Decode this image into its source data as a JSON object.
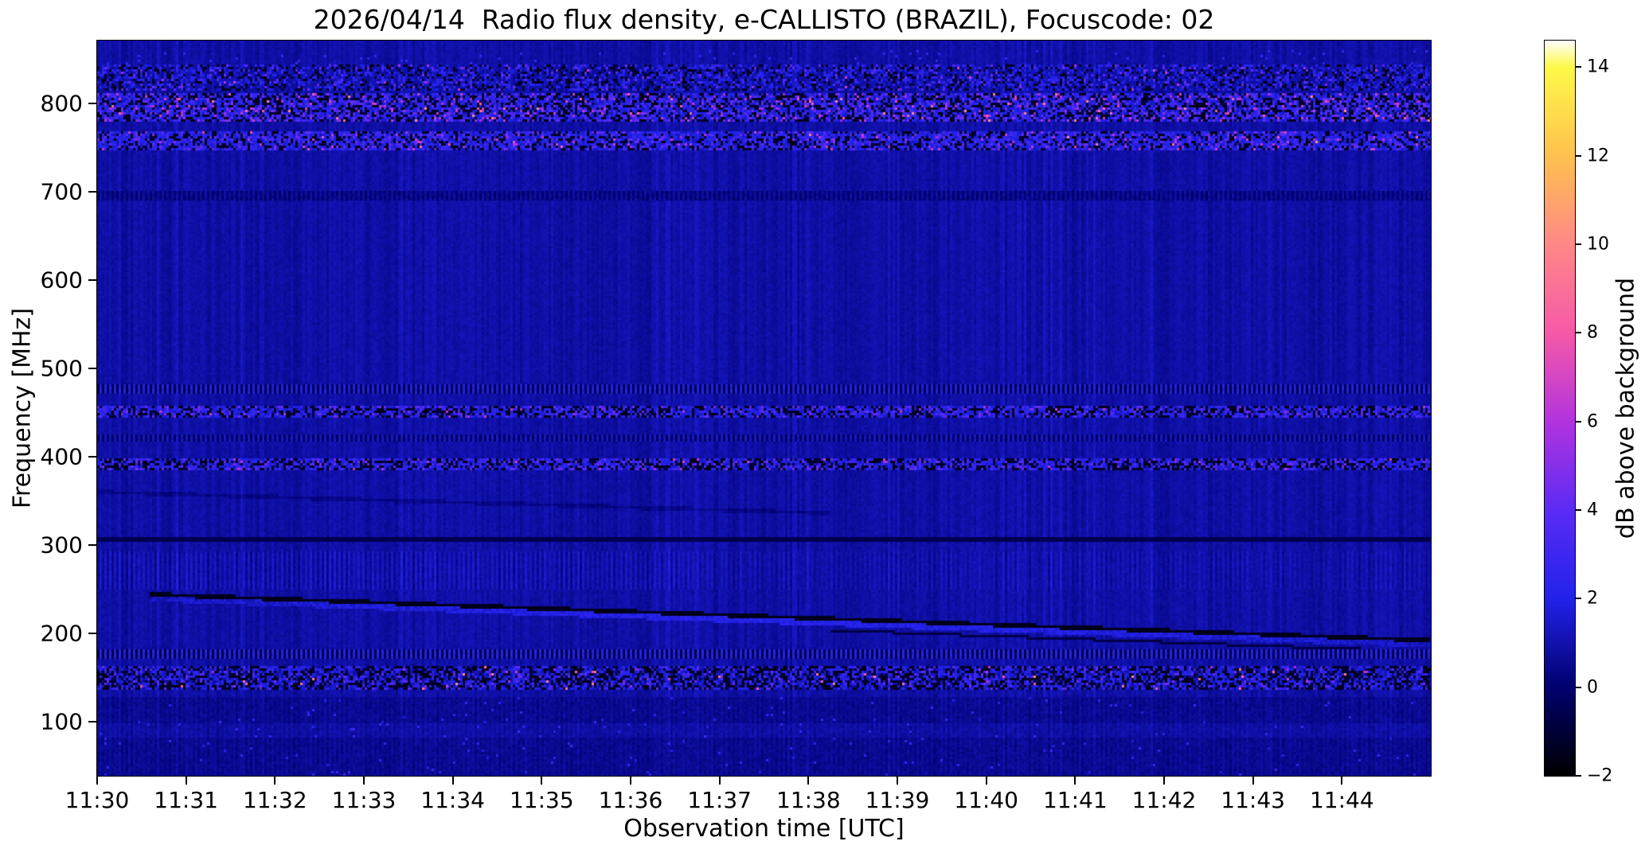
{
  "figure": {
    "title": "2026/04/14  Radio flux density, e-CALLISTO (BRAZIL), Focuscode: 02",
    "xlabel": "Observation time [UTC]",
    "ylabel": "Frequency [MHz]",
    "background_color": "#ffffff"
  },
  "chart_data": {
    "type": "heatmap",
    "subtype": "radio-spectrogram",
    "title": "2026/04/14  Radio flux density, e-CALLISTO (BRAZIL), Focuscode: 02",
    "station": "e-CALLISTO (BRAZIL)",
    "date": "2026/04/14",
    "focuscode": "02",
    "xlabel": "Observation time [UTC]",
    "ylabel": "Frequency [MHz]",
    "x_ticks": [
      "11:30",
      "11:31",
      "11:32",
      "11:33",
      "11:34",
      "11:35",
      "11:36",
      "11:37",
      "11:38",
      "11:39",
      "11:40",
      "11:41",
      "11:42",
      "11:43",
      "11:44"
    ],
    "x_range_utc": [
      "11:30:00",
      "11:45:00"
    ],
    "y_ticks_mhz": [
      800,
      700,
      600,
      500,
      400,
      300,
      200,
      100
    ],
    "y_range_mhz": [
      38.6,
      871.2
    ],
    "grid": false,
    "legend": "none",
    "colorbar": {
      "label": "dB above background",
      "position": "right",
      "ticks": [
        "14",
        "12",
        "10",
        "8",
        "6",
        "4",
        "2",
        "0",
        "−2"
      ],
      "tick_values": [
        14,
        12,
        10,
        8,
        6,
        4,
        2,
        0,
        -2
      ],
      "range_db": [
        -2,
        14.6
      ],
      "colormap": [
        [
          -2,
          "#000000"
        ],
        [
          0,
          "#00006e"
        ],
        [
          2,
          "#2222ea"
        ],
        [
          4,
          "#5b2bf5"
        ],
        [
          6,
          "#b233de"
        ],
        [
          8,
          "#f659a8"
        ],
        [
          10,
          "#ff8887"
        ],
        [
          12,
          "#ffc14e"
        ],
        [
          14,
          "#fdf948"
        ],
        [
          14.6,
          "#ffffff"
        ]
      ]
    },
    "background_level_db": 0.7,
    "features": [
      {
        "kind": "dashes",
        "fmin": 845,
        "fmax": 860,
        "prob": 0.02,
        "level": 2.2,
        "label": "sporadic bright-blue dashes near 850 MHz"
      },
      {
        "kind": "speckle",
        "fmin": 814,
        "fmax": 844,
        "p": [
          0.2,
          0.3,
          0.05,
          0.004,
          0.0
        ],
        "label": "weak noisy strip 814-844 MHz"
      },
      {
        "kind": "speckle",
        "fmin": 780,
        "fmax": 812,
        "p": [
          0.32,
          0.46,
          0.16,
          0.045,
          0.012
        ],
        "label": "strong RFI band 780-812 MHz, black/blue speckle with pink bursts"
      },
      {
        "kind": "speckle",
        "fmin": 748,
        "fmax": 769,
        "p": [
          0.25,
          0.58,
          0.14,
          0.025,
          0.003
        ],
        "label": "RFI band 748-769 MHz"
      },
      {
        "kind": "dots",
        "fmin": 690,
        "fmax": 700,
        "dark": -0.2,
        "bright": 0.5,
        "label": "very faint band ~695 MHz"
      },
      {
        "kind": "dots",
        "fmin": 472,
        "fmax": 483,
        "dark": -0.8,
        "bright": 1.6,
        "label": "fine dotted interference ~478 MHz"
      },
      {
        "kind": "speckle",
        "fmin": 444,
        "fmax": 458,
        "p": [
          0.35,
          0.5,
          0.13,
          0.01,
          0.0
        ],
        "label": "RFI band ~450 MHz"
      },
      {
        "kind": "dots",
        "fmin": 416,
        "fmax": 426,
        "dark": -0.5,
        "bright": 1.1,
        "label": "weak dotted band ~420 MHz"
      },
      {
        "kind": "speckle",
        "fmin": 384,
        "fmax": 398,
        "p": [
          0.36,
          0.5,
          0.13,
          0.008,
          0.0
        ],
        "label": "RFI band ~390 MHz"
      },
      {
        "kind": "drift",
        "f_start": 360,
        "f_end": 336,
        "t_start": 0.0,
        "t_end": 0.55,
        "dark": -0.5,
        "blend": true,
        "label": "faint drifting dark lane 360 to 336 MHz (first half)"
      },
      {
        "kind": "line",
        "f": 306,
        "halfwidth": 2,
        "level": -0.75,
        "label": "narrow dark horizontal line ~306 MHz"
      },
      {
        "kind": "stripes",
        "fmin": 250,
        "fmax": 292,
        "amp": 0.5,
        "label": "vertical blue striping 250-292 MHz, stronger before 11:37"
      },
      {
        "kind": "drift",
        "f_start": 244,
        "f_end": 192,
        "t_start": 0.04,
        "t_end": 1.0,
        "dark": -1.75,
        "bright": 1.6,
        "bright_span": 6,
        "second_offset": -13,
        "second_t": 0.55,
        "label": "prominent slow negative-drift dark lane 244 to 192 MHz spanning 11:30-11:45"
      },
      {
        "kind": "dots",
        "fmin": 172,
        "fmax": 181,
        "dark": -1.0,
        "bright": 1.8,
        "label": "dotted band ~176 MHz"
      },
      {
        "kind": "speckle",
        "fmin": 136,
        "fmax": 163,
        "p": [
          0.38,
          0.4,
          0.06,
          0.004,
          0.006
        ],
        "label": "strong broadcast band 136-163 MHz, black blobs, blue dots, occasional magenta bursts"
      },
      {
        "kind": "calm",
        "fmin": 38,
        "fmax": 127,
        "bright_smear": [
          83,
          97
        ],
        "label": "quieter mottled region below 127 MHz"
      }
    ]
  }
}
